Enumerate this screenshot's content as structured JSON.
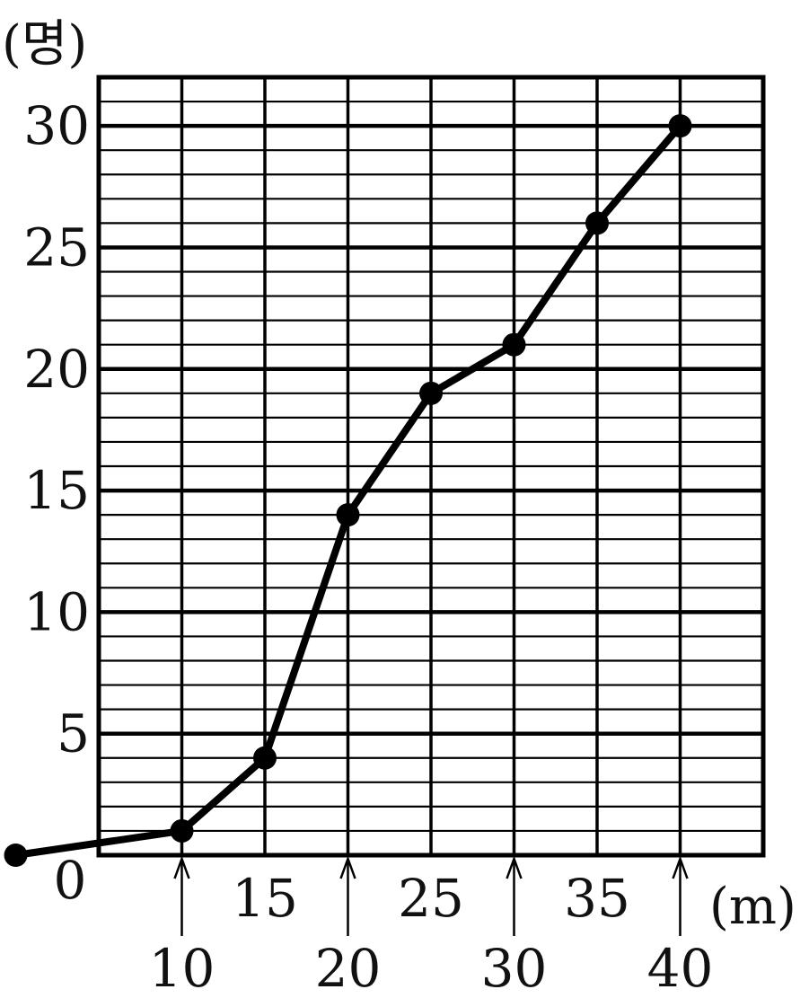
{
  "chart_data": {
    "type": "line",
    "y_unit_label": "(명)",
    "x_unit_label": "(m)",
    "x": [
      10,
      15,
      20,
      25,
      30,
      35,
      40
    ],
    "series": [
      {
        "x": [
          0,
          10,
          15,
          20,
          25,
          30,
          35,
          40
        ],
        "values": [
          0,
          1,
          4,
          14,
          19,
          21,
          26,
          30
        ]
      }
    ],
    "x_ticks": [
      "0",
      "10",
      "15",
      "20",
      "25",
      "30",
      "35",
      "40"
    ],
    "y_ticks": [
      "5",
      "10",
      "15",
      "20",
      "25",
      "30"
    ],
    "xlim": [
      5,
      45
    ],
    "ylim": [
      0,
      32
    ],
    "grid": true,
    "colors": {
      "line": "#000000",
      "grid": "#000000"
    }
  }
}
